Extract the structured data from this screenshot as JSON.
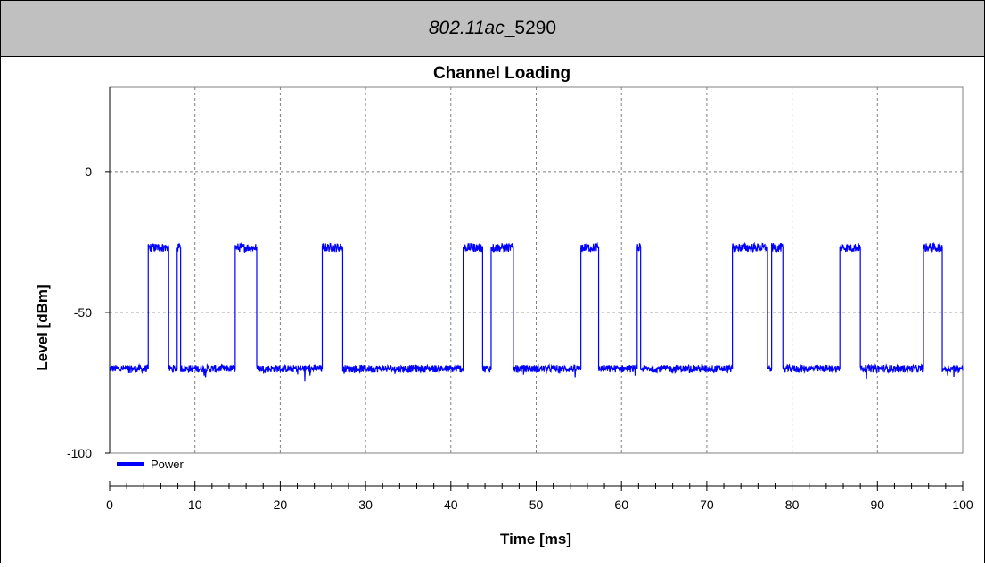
{
  "header": {
    "title_italic": "802.11ac",
    "title_rest": " _5290"
  },
  "colors": {
    "series": "#0000ff",
    "grid": "#808080",
    "header_bg": "#c0c0c0"
  },
  "chart_data": {
    "type": "line",
    "title": "Channel Loading",
    "xlabel": "Time [ms]",
    "ylabel": "Level [dBm]",
    "xlim": [
      0,
      100
    ],
    "ylim": [
      -100,
      30
    ],
    "x_ticks": [
      0,
      10,
      20,
      30,
      40,
      50,
      60,
      70,
      80,
      90,
      100
    ],
    "y_ticks": [
      0,
      -50,
      -100
    ],
    "grid": true,
    "legend_position": "bottom-left",
    "noise_floor_dbm": -70,
    "burst_level_dbm": -27,
    "series": [
      {
        "name": "Power",
        "color": "#0000ff",
        "bursts": [
          [
            4.5,
            6.9
          ],
          [
            7.9,
            8.3
          ],
          [
            14.7,
            17.2
          ],
          [
            24.9,
            27.3
          ],
          [
            41.4,
            43.7
          ],
          [
            44.7,
            47.3
          ],
          [
            55.2,
            57.3
          ],
          [
            61.8,
            62.2
          ],
          [
            73.0,
            77.1
          ],
          [
            77.6,
            78.9
          ],
          [
            85.6,
            88.0
          ],
          [
            95.4,
            97.6
          ]
        ]
      }
    ]
  }
}
